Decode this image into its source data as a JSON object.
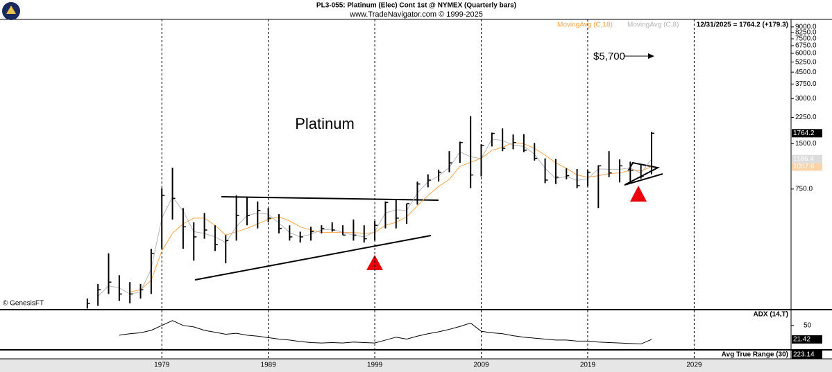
{
  "chart_data": [
    {
      "type": "ohlc",
      "title": "PL3-055:  Platinum (Elec) Cont 1st @ NYMEX  (Quarterly bars)",
      "subtitle": "www.TradeNavigator.com © 1999-2025",
      "status": "12/31/2025 = 1764.2 (+179.3)",
      "source": "© GenesisFT",
      "annotations": [
        "Platinum",
        "$5,700"
      ],
      "log_scale": true,
      "x": [
        1972,
        1973,
        1974,
        1975,
        1976,
        1977,
        1978,
        1979,
        1980,
        1981,
        1982,
        1983,
        1984,
        1985,
        1986,
        1987,
        1988,
        1989,
        1990,
        1991,
        1992,
        1993,
        1994,
        1995,
        1996,
        1997,
        1998,
        1999,
        2000,
        2001,
        2002,
        2003,
        2004,
        2005,
        2006,
        2007,
        2008,
        2009,
        2010,
        2011,
        2012,
        2013,
        2014,
        2015,
        2016,
        2017,
        2018,
        2019,
        2020,
        2021,
        2022,
        2023,
        2024,
        2025
      ],
      "xlim": [
        1963.8,
        2038.1
      ],
      "xticks": [
        1979,
        1989,
        1999,
        2009,
        2019,
        2029
      ],
      "ylim": [
        118,
        10100
      ],
      "yticks": [
        {
          "value": 9000,
          "label": "9000.0"
        },
        {
          "value": 8250,
          "label": "8250.0"
        },
        {
          "value": 7500,
          "label": "7500.0"
        },
        {
          "value": 6750,
          "label": "6750.0"
        },
        {
          "value": 6000,
          "label": "6000.0"
        },
        {
          "value": 5250,
          "label": "5250.0"
        },
        {
          "value": 4500,
          "label": "4500.0"
        },
        {
          "value": 3750,
          "label": "3750.0"
        },
        {
          "value": 3000,
          "label": "3000.0"
        },
        {
          "value": 2250,
          "label": "2250.0"
        },
        {
          "value": 1500,
          "label": "1500.0"
        },
        {
          "value": 750,
          "label": "750.0"
        }
      ],
      "ohlc": {
        "color": "#000000",
        "high": [
          140,
          175,
          280,
          200,
          180,
          175,
          300,
          760,
          1040,
          560,
          450,
          520,
          430,
          370,
          680,
          660,
          620,
          560,
          510,
          430,
          390,
          420,
          430,
          450,
          430,
          470,
          430,
          460,
          620,
          640,
          600,
          840,
          940,
          1010,
          1340,
          1550,
          2290,
          1490,
          1780,
          1900,
          1730,
          1740,
          1520,
          1200,
          1190,
          1030,
          1020,
          1000,
          1080,
          1340,
          1180,
          1140,
          1100,
          1800
        ],
        "low": [
          120,
          125,
          150,
          135,
          130,
          140,
          150,
          300,
          470,
          300,
          250,
          350,
          290,
          240,
          340,
          430,
          410,
          450,
          380,
          340,
          330,
          340,
          380,
          390,
          370,
          340,
          330,
          340,
          410,
          410,
          440,
          590,
          770,
          840,
          970,
          1120,
          760,
          910,
          1440,
          1340,
          1380,
          1320,
          1160,
          820,
          810,
          870,
          760,
          780,
          560,
          900,
          830,
          840,
          880,
          940
        ],
        "close": [
          130,
          160,
          180,
          150,
          150,
          160,
          280,
          680,
          650,
          420,
          360,
          400,
          320,
          340,
          500,
          500,
          540,
          480,
          410,
          360,
          360,
          390,
          410,
          400,
          370,
          370,
          350,
          430,
          610,
          480,
          600,
          810,
          860,
          970,
          1120,
          1530,
          930,
          1460,
          1760,
          1400,
          1530,
          1360,
          1200,
          860,
          900,
          920,
          790,
          970,
          1070,
          960,
          1070,
          1000,
          910,
          1764.2
        ]
      },
      "series": [
        {
          "name": "MovingAvg (C,18)",
          "color": "#f5a54a",
          "tag_color": "#fbd3a6",
          "values": [
            null,
            null,
            null,
            null,
            155,
            160,
            185,
            290,
            380,
            440,
            480,
            480,
            430,
            370,
            390,
            410,
            440,
            470,
            490,
            460,
            420,
            400,
            385,
            385,
            385,
            385,
            380,
            385,
            430,
            450,
            490,
            580,
            680,
            780,
            870,
            1060,
            1130,
            1200,
            1360,
            1420,
            1530,
            1500,
            1400,
            1260,
            1120,
            1030,
            930,
            900,
            920,
            950,
            960,
            1000,
            990,
            1057.6
          ]
        },
        {
          "name": "MovingAvg (C,8)",
          "color": "#b4b4b4",
          "tag_color": "#dcdcdc",
          "values": [
            null,
            145,
            170,
            165,
            150,
            155,
            220,
            480,
            665,
            535,
            390,
            380,
            360,
            330,
            420,
            500,
            520,
            510,
            445,
            385,
            360,
            375,
            400,
            405,
            385,
            370,
            360,
            390,
            520,
            545,
            540,
            705,
            835,
            915,
            1045,
            1325,
            1230,
            1195,
            1610,
            1580,
            1465,
            1445,
            1280,
            1030,
            880,
            910,
            855,
            880,
            1020,
            1015,
            1015,
            1035,
            955,
            1186.4
          ]
        }
      ]
    },
    {
      "type": "line",
      "ylim": [
        0,
        81
      ],
      "yticks": [
        50
      ],
      "series": [
        {
          "name": "ADX (14,T)",
          "color": "#000000",
          "values": [
            null,
            null,
            null,
            30,
            33,
            35,
            40,
            50,
            60,
            50,
            47,
            40,
            36,
            32,
            34,
            30,
            28,
            25,
            22,
            20,
            17,
            15,
            14,
            15,
            14,
            16,
            15,
            14,
            20,
            26,
            22,
            28,
            33,
            37,
            42,
            48,
            55,
            38,
            35,
            33,
            29,
            26,
            24,
            22,
            20,
            20,
            18,
            18,
            16,
            15,
            14,
            13,
            12,
            21.42
          ]
        }
      ]
    },
    {
      "type": "line",
      "title": "Avg True Range (30)",
      "last_value": 223.14
    }
  ]
}
